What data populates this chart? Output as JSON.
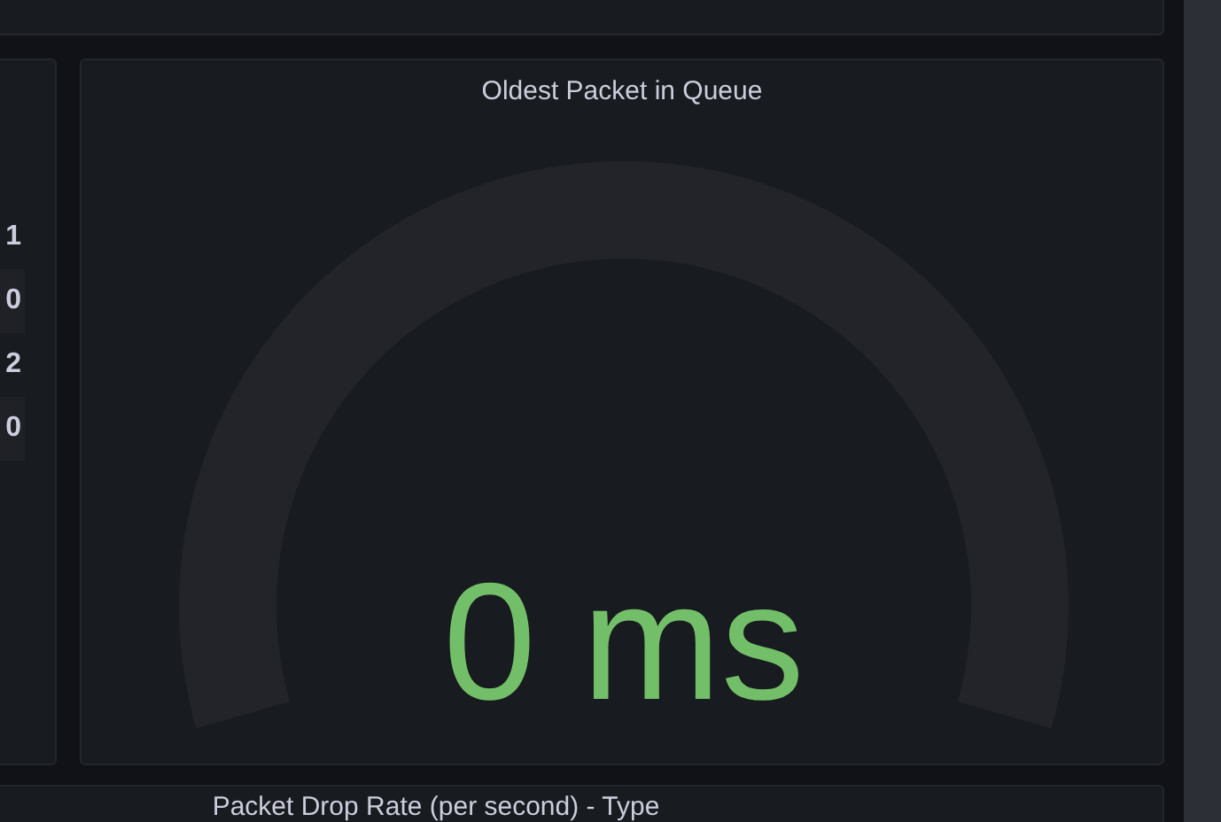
{
  "chart_data": [
    {
      "type": "other",
      "annotations": [
        "1",
        "0",
        "2",
        "0"
      ]
    },
    {
      "type": "other",
      "title": "Oldest Packet in Queue",
      "values": [
        0
      ],
      "value_labels": [
        "0 ms"
      ],
      "colors": [
        "#73bf69"
      ]
    },
    {
      "type": "other",
      "title": "Packet Drop Rate (per second) - Type"
    }
  ]
}
